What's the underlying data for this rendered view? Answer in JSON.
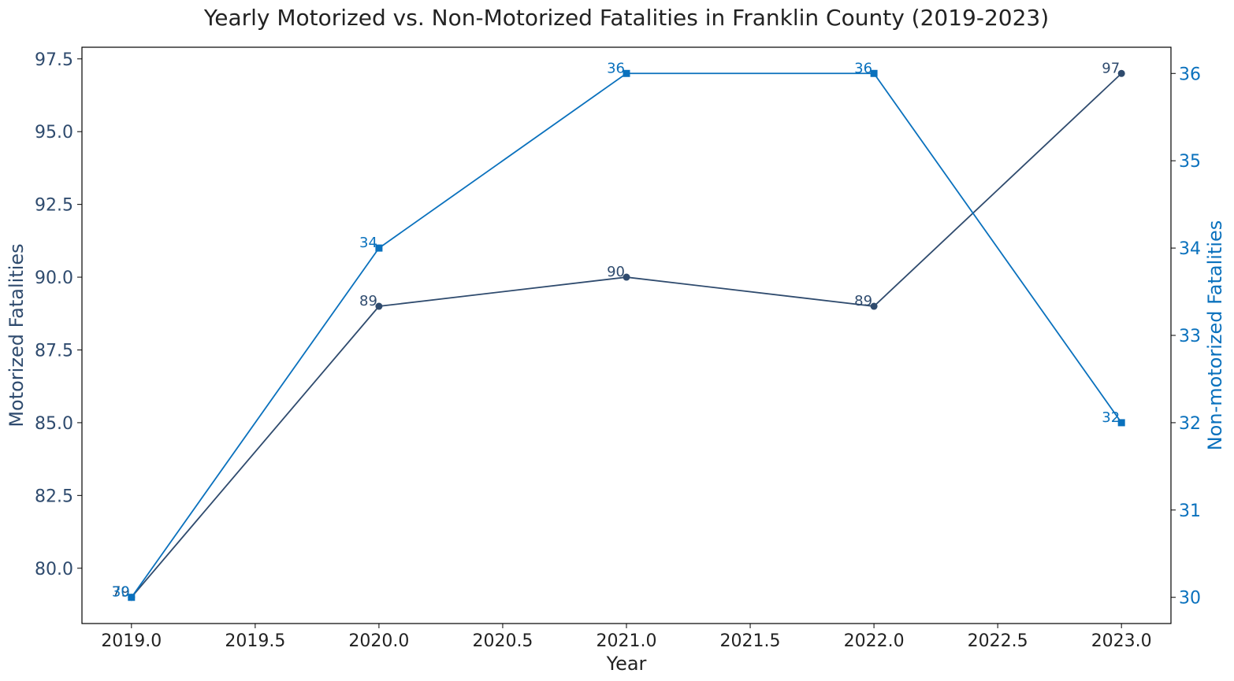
{
  "chart_data": {
    "type": "line",
    "title": "Yearly Motorized vs. Non-Motorized Fatalities in Franklin County (2019-2023)",
    "xlabel": "Year",
    "ylabel_left": "Motorized Fatalities",
    "ylabel_right": "Non-motorized Fatalities",
    "x": [
      2019,
      2020,
      2021,
      2022,
      2023
    ],
    "xlim": [
      2018.8,
      2023.2
    ],
    "x_ticks": [
      2019.0,
      2019.5,
      2020.0,
      2020.5,
      2021.0,
      2021.5,
      2022.0,
      2022.5,
      2023.0
    ],
    "x_tick_labels": [
      "2019.0",
      "2019.5",
      "2020.0",
      "2020.5",
      "2021.0",
      "2021.5",
      "2022.0",
      "2022.5",
      "2023.0"
    ],
    "left_axis": {
      "ylim": [
        78.1,
        97.9
      ],
      "ticks": [
        80.0,
        82.5,
        85.0,
        87.5,
        90.0,
        92.5,
        95.0,
        97.5
      ],
      "tick_labels": [
        "80.0",
        "82.5",
        "85.0",
        "87.5",
        "90.0",
        "92.5",
        "95.0",
        "97.5"
      ]
    },
    "right_axis": {
      "ylim": [
        29.7,
        36.3
      ],
      "ticks": [
        30,
        31,
        32,
        33,
        34,
        35,
        36
      ],
      "tick_labels": [
        "30",
        "31",
        "32",
        "33",
        "34",
        "35",
        "36"
      ]
    },
    "series": [
      {
        "axis": "left",
        "values": [
          79,
          89,
          90,
          89,
          97
        ],
        "labels": [
          "79",
          "89",
          "90",
          "89",
          "97"
        ],
        "color": "#2f4b6e",
        "marker": "circle"
      },
      {
        "axis": "right",
        "values": [
          30,
          34,
          36,
          36,
          32
        ],
        "labels": [
          "30",
          "34",
          "36",
          "36",
          "32"
        ],
        "color": "#0a71bd",
        "marker": "square"
      }
    ],
    "grid": false,
    "legend": "none"
  }
}
